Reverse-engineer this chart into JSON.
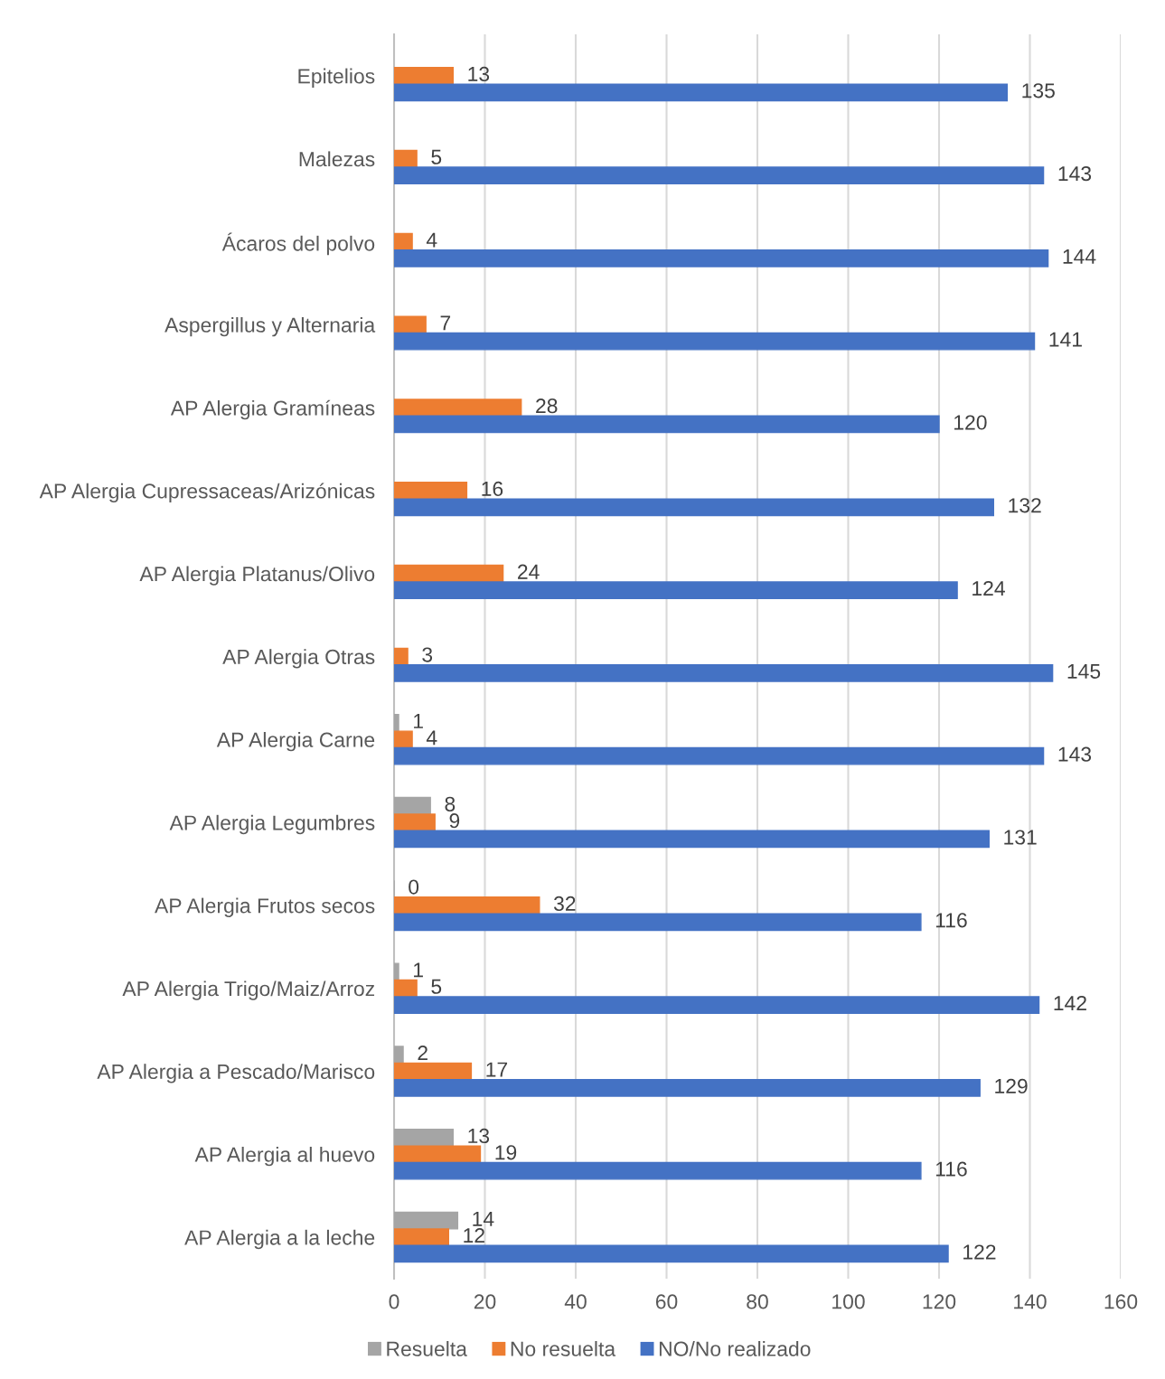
{
  "chart_data": {
    "type": "bar",
    "orientation": "horizontal",
    "categories": [
      "Epitelios",
      "Malezas",
      "Ácaros del polvo",
      "Aspergillus y Alternaria",
      "AP Alergia Gramíneas",
      "AP Alergia Cupressaceas/Arizónicas",
      "AP Alergia Platanus/Olivo",
      "AP Alergia Otras",
      "AP Alergia Carne",
      "AP Alergia Legumbres",
      "AP Alergia Frutos secos",
      "AP Alergia Trigo/Maiz/Arroz",
      "AP Alergia a Pescado/Marisco",
      "AP Alergia al huevo",
      "AP Alergia a la leche"
    ],
    "series": [
      {
        "name": "Resuelta",
        "color": "#a5a5a5",
        "values": [
          null,
          null,
          null,
          null,
          null,
          null,
          null,
          null,
          1,
          8,
          0,
          1,
          2,
          13,
          14
        ]
      },
      {
        "name": "No resuelta",
        "color": "#ed7d31",
        "values": [
          13,
          5,
          4,
          7,
          28,
          16,
          24,
          3,
          4,
          9,
          32,
          5,
          17,
          19,
          12
        ]
      },
      {
        "name": "NO/No realizado",
        "color": "#4472c4",
        "values": [
          135,
          143,
          144,
          141,
          120,
          132,
          124,
          145,
          143,
          131,
          116,
          142,
          129,
          116,
          122
        ]
      }
    ],
    "xlim": [
      0,
      160
    ],
    "xticks": [
      0,
      20,
      40,
      60,
      80,
      100,
      120,
      140,
      160
    ],
    "grid": "x",
    "legend": "bottom",
    "data_labels": true
  }
}
